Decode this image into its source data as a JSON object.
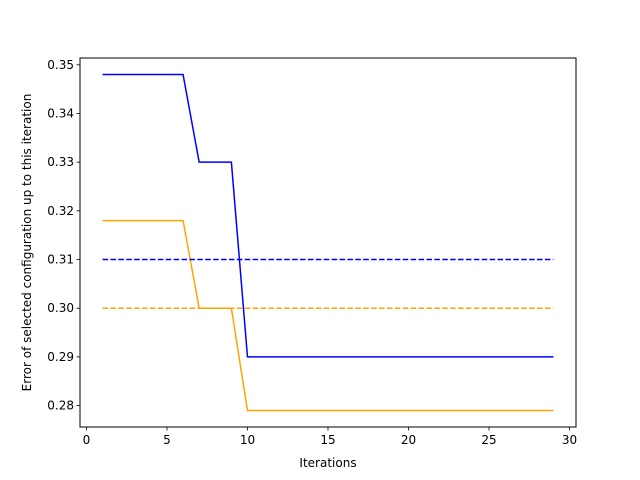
{
  "chart_data": {
    "type": "line",
    "title": "",
    "xlabel": "Iterations",
    "ylabel": "Error of selected configuration up to this iteration",
    "xlim": [
      -0.4,
      30.4
    ],
    "ylim": [
      0.2756,
      0.3514
    ],
    "xticks": [
      0,
      5,
      10,
      15,
      20,
      25,
      30
    ],
    "xtick_labels": [
      "0",
      "5",
      "10",
      "15",
      "20",
      "25",
      "30"
    ],
    "yticks": [
      0.28,
      0.29,
      0.3,
      0.31,
      0.32,
      0.33,
      0.34,
      0.35
    ],
    "ytick_labels": [
      "0.28",
      "0.29",
      "0.30",
      "0.31",
      "0.32",
      "0.33",
      "0.34",
      "0.35"
    ],
    "grid": false,
    "series": [
      {
        "color": "#0000ff",
        "style": "solid",
        "x": [
          1,
          6,
          7,
          9,
          10,
          29
        ],
        "y": [
          0.348,
          0.348,
          0.33,
          0.33,
          0.29,
          0.29
        ]
      },
      {
        "color": "#ffa500",
        "style": "solid",
        "x": [
          1,
          6,
          7,
          9,
          10,
          29
        ],
        "y": [
          0.318,
          0.318,
          0.3,
          0.3,
          0.279,
          0.279
        ]
      },
      {
        "color": "#0000ff",
        "style": "dashed",
        "x": [
          1,
          29
        ],
        "y": [
          0.31,
          0.31
        ]
      },
      {
        "color": "#ffa500",
        "style": "dashed",
        "x": [
          1,
          29
        ],
        "y": [
          0.3,
          0.3
        ]
      }
    ]
  }
}
